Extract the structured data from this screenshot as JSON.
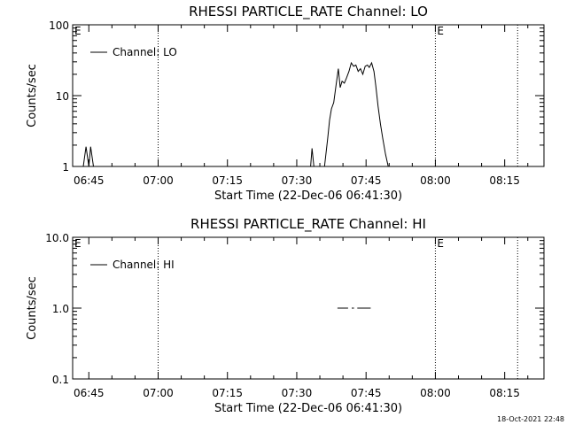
{
  "footer": {
    "timestamp": "18-Oct-2021 22:48"
  },
  "chart_data": [
    {
      "type": "line",
      "title": "RHESSI PARTICLE_RATE Channel: LO",
      "xlabel": "Start Time (22-Dec-06 06:41:30)",
      "ylabel": "Counts/sec",
      "y_scale": "log",
      "ylim": [
        1,
        100
      ],
      "xlim_minutes": [
        0,
        102
      ],
      "x_tick_labels": [
        "06:45",
        "07:00",
        "07:15",
        "07:30",
        "07:45",
        "08:00",
        "08:15"
      ],
      "x_tick_minutes": [
        3.5,
        18.5,
        33.5,
        48.5,
        63.5,
        78.5,
        93.5
      ],
      "y_tick_labels": [
        "1",
        "10",
        "100"
      ],
      "y_ticks": [
        1,
        10,
        100
      ],
      "grid": false,
      "legend": {
        "position": "top-left",
        "entries": [
          "Channel: LO"
        ]
      },
      "markers": [
        {
          "label": "E",
          "minute": 0
        },
        {
          "label": "E",
          "minute": 78.5
        }
      ],
      "vlines_minutes": [
        18.5,
        78.5,
        96.3
      ],
      "series": [
        {
          "name": "Channel: LO",
          "segments": [
            {
              "x": [
                2.3,
                2.9,
                3.5,
                3.9,
                4.5
              ],
              "y": [
                1,
                1.9,
                1,
                1.9,
                1
              ]
            },
            {
              "x": [
                51.5,
                51.8,
                52.2
              ],
              "y": [
                1,
                1.8,
                1
              ]
            },
            {
              "x": [
                54.5,
                55.2,
                55.6,
                56.0,
                56.5,
                57.0,
                57.5,
                57.9,
                58.3,
                58.8,
                59.3,
                59.8,
                60.3,
                60.8,
                61.3,
                61.8,
                62.3,
                62.8,
                63.3,
                63.8,
                64.2,
                64.7,
                65.2,
                65.6,
                66.1,
                66.6,
                67.1,
                67.7,
                68.3
              ],
              "y": [
                1,
                2.5,
                4.5,
                6.5,
                8,
                14,
                24,
                13,
                16,
                15,
                18,
                22,
                29,
                26,
                27,
                22,
                24,
                20,
                26,
                27,
                25,
                29,
                22,
                14,
                7,
                4,
                2.5,
                1.5,
                1
              ]
            }
          ]
        }
      ]
    },
    {
      "type": "line",
      "title": "RHESSI PARTICLE_RATE Channel: HI",
      "xlabel": "Start Time (22-Dec-06 06:41:30)",
      "ylabel": "Counts/sec",
      "y_scale": "log",
      "ylim": [
        0.1,
        10
      ],
      "xlim_minutes": [
        0,
        102
      ],
      "x_tick_labels": [
        "06:45",
        "07:00",
        "07:15",
        "07:30",
        "07:45",
        "08:00",
        "08:15"
      ],
      "x_tick_minutes": [
        3.5,
        18.5,
        33.5,
        48.5,
        63.5,
        78.5,
        93.5
      ],
      "y_tick_labels": [
        "0.1",
        "1.0",
        "10.0"
      ],
      "y_ticks": [
        0.1,
        1,
        10
      ],
      "grid": false,
      "legend": {
        "position": "top-left",
        "entries": [
          "Channel: HI"
        ]
      },
      "markers": [
        {
          "label": "E",
          "minute": 0
        },
        {
          "label": "E",
          "minute": 78.5
        }
      ],
      "vlines_minutes": [
        18.5,
        78.5,
        96.3
      ],
      "series": [
        {
          "name": "Channel: HI",
          "segments": [
            {
              "x": [
                57.3,
                59.6
              ],
              "y": [
                1,
                1
              ]
            },
            {
              "x": [
                60.4,
                60.9
              ],
              "y": [
                1,
                1
              ]
            },
            {
              "x": [
                61.6,
                64.5
              ],
              "y": [
                1,
                1
              ]
            }
          ]
        }
      ]
    }
  ]
}
